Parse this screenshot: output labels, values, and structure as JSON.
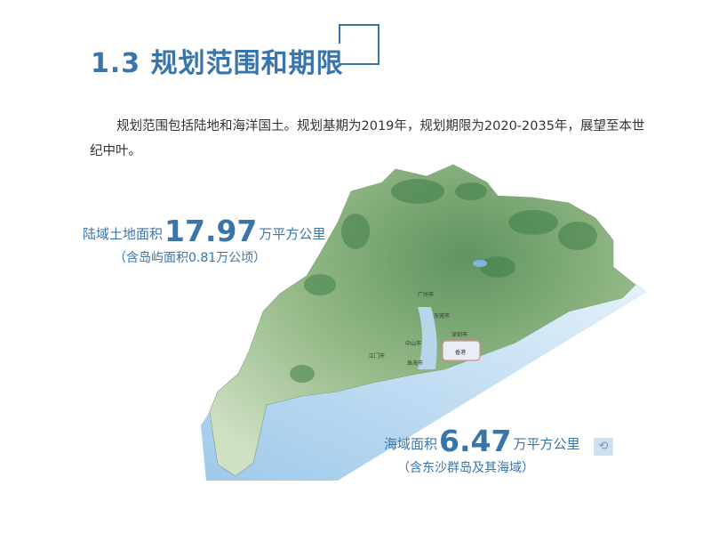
{
  "header": {
    "title": "1.3  规划范围和期限"
  },
  "intro": {
    "text": "规划范围包括陆地和海洋国土。规划基期为2019年，规划期限为2020-2035年，展望至本世纪中叶。"
  },
  "land_stat": {
    "prefix": "陆域土地面积",
    "value": "17.97",
    "unit": "万平方公里",
    "note": "（含岛屿面积0.81万公顷）"
  },
  "sea_stat": {
    "prefix": "海域面积",
    "value": "6.47",
    "unit": "万平方公里",
    "note": "（含东沙群岛及其海域）"
  },
  "map": {
    "labels": {
      "guangzhou": "广州市",
      "dongguan": "东莞市",
      "shenzhen": "深圳市",
      "hongkong": "香港",
      "zhongshan": "中山市",
      "zhuhai": "珠海市",
      "jiangmen": "江门市"
    },
    "colors": {
      "land": "#a9c79a",
      "forest": "#4f8a55",
      "sea": "#bcdaf0",
      "accent": "#3a75aa",
      "hk_border": "#d98a9a"
    }
  },
  "corner_icon": "map-thumbnail-icon"
}
